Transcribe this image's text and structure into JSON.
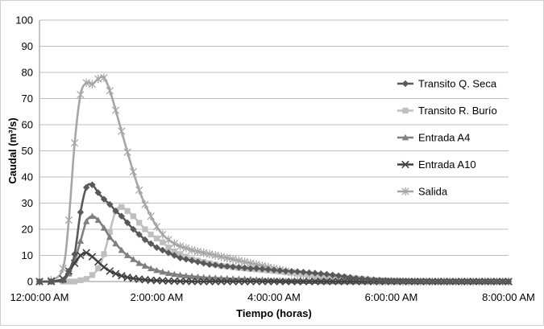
{
  "chart_data": {
    "type": "line",
    "title": "",
    "xlabel": "Tiempo (horas)",
    "ylabel": "Caudal (m³/s)",
    "ylim": [
      0,
      100
    ],
    "yticks": [
      0,
      10,
      20,
      30,
      40,
      50,
      60,
      70,
      80,
      90,
      100
    ],
    "xlim_hours": [
      0,
      8
    ],
    "xtick_hours": [
      0,
      2,
      4,
      6,
      8
    ],
    "xtick_labels": [
      "12:00:00 AM",
      "2:00:00 AM",
      "4:00:00 AM",
      "6:00:00 AM",
      "8:00:00 AM"
    ],
    "grid": "horizontal",
    "legend_position": "right",
    "series": [
      {
        "name": "Transito Q. Seca",
        "color": "#595959",
        "marker": "diamond",
        "x": [
          0.0,
          0.2,
          0.4,
          0.5,
          0.6,
          0.7,
          0.8,
          0.9,
          1.0,
          1.1,
          1.2,
          1.3,
          1.4,
          1.5,
          1.6,
          1.7,
          1.8,
          1.9,
          2.0,
          2.1,
          2.2,
          2.3,
          2.4,
          2.5,
          2.6,
          2.7,
          2.8,
          2.9,
          3.0,
          3.1,
          3.2,
          3.3,
          3.4,
          3.5,
          3.6,
          3.7,
          3.8,
          3.9,
          4.0,
          4.1,
          4.2,
          4.3,
          4.4,
          4.5,
          4.6,
          4.7,
          4.8,
          4.9,
          5.0,
          5.1,
          5.2,
          5.3,
          5.4,
          5.5,
          5.6,
          5.7,
          5.8,
          5.9,
          6.0,
          6.1,
          6.2,
          6.3,
          6.4,
          6.5,
          6.6,
          6.7,
          6.8,
          6.9,
          7.0,
          7.1,
          7.2,
          7.3,
          7.4,
          7.5,
          7.6,
          7.7,
          7.8,
          7.9,
          8.0
        ],
        "y": [
          0,
          0,
          0.5,
          4,
          10.5,
          26.5,
          36,
          37,
          34,
          31.5,
          29.5,
          27,
          25,
          22.5,
          20,
          18,
          16,
          14.5,
          13,
          12,
          11,
          10,
          9,
          8.5,
          8,
          7.5,
          7,
          6.5,
          6.3,
          6,
          5.8,
          5.6,
          5.4,
          5.2,
          5,
          5,
          4.8,
          4.6,
          4.4,
          4.2,
          4,
          3.9,
          3.8,
          3.6,
          3.4,
          3.2,
          3,
          2.8,
          2.5,
          2.2,
          1.9,
          1.6,
          1.3,
          1.1,
          0.9,
          0.7,
          0.5,
          0.4,
          0.3,
          0.25,
          0.2,
          0.15,
          0.1,
          0.1,
          0.05,
          0,
          0,
          0,
          0,
          0,
          0,
          0,
          0,
          0,
          0,
          0,
          0,
          0,
          0
        ]
      },
      {
        "name": "Transito R. Burío",
        "color": "#bfbfbf",
        "marker": "square",
        "x": [
          0.0,
          0.2,
          0.4,
          0.5,
          0.6,
          0.7,
          0.8,
          0.9,
          1.0,
          1.1,
          1.2,
          1.3,
          1.4,
          1.5,
          1.6,
          1.7,
          1.8,
          1.9,
          2.0,
          2.1,
          2.2,
          2.3,
          2.4,
          2.5,
          2.6,
          2.7,
          2.8,
          2.9,
          3.0,
          3.1,
          3.2,
          3.3,
          3.4,
          3.5,
          3.6,
          3.7,
          3.8,
          3.9,
          4.0,
          4.1,
          4.2,
          4.3,
          4.4,
          4.5,
          4.6,
          4.7,
          4.8,
          4.9,
          5.0,
          5.1,
          5.2,
          5.3,
          5.4,
          5.5,
          5.6,
          5.7,
          5.8,
          5.9,
          6.0,
          6.1,
          6.2,
          6.3,
          6.4,
          6.5,
          6.6,
          6.7,
          6.8,
          6.9,
          7.0,
          7.1,
          7.2,
          7.3,
          7.4,
          7.5,
          7.6,
          7.7,
          7.8,
          7.9,
          8.0
        ],
        "y": [
          0,
          0,
          0,
          0,
          0,
          0.5,
          1,
          2.5,
          5,
          10.5,
          19,
          27,
          28.5,
          27,
          25,
          22.5,
          20,
          18,
          16.5,
          15,
          13,
          11.5,
          10.5,
          9.5,
          8.5,
          8,
          7.5,
          7,
          6.5,
          6,
          5.8,
          5.5,
          5.2,
          5,
          4.8,
          4.6,
          4.4,
          4.2,
          4,
          3.8,
          3.6,
          3.4,
          3.2,
          3,
          2.8,
          2.6,
          2.4,
          2.2,
          2,
          1.8,
          1.6,
          1.4,
          1.2,
          1,
          0.8,
          0.6,
          0.5,
          0.4,
          0.3,
          0.25,
          0.2,
          0.15,
          0.1,
          0.1,
          0.05,
          0,
          0,
          0,
          0,
          0,
          0,
          0,
          0,
          0,
          0,
          0,
          0,
          0,
          0
        ]
      },
      {
        "name": "Entrada A4",
        "color": "#7f7f7f",
        "marker": "triangle",
        "x": [
          0.0,
          0.2,
          0.4,
          0.5,
          0.6,
          0.7,
          0.8,
          0.9,
          1.0,
          1.1,
          1.2,
          1.3,
          1.4,
          1.5,
          1.6,
          1.7,
          1.8,
          1.9,
          2.0,
          2.1,
          2.2,
          2.3,
          2.4,
          2.5,
          2.6,
          2.7,
          2.8,
          2.9,
          3.0,
          3.1,
          3.2,
          3.3,
          3.4,
          3.5,
          3.6,
          3.7,
          3.8,
          3.9,
          4.0,
          4.1,
          4.2,
          4.3,
          4.4,
          4.5,
          4.6,
          4.7,
          4.8,
          4.9,
          5.0,
          5.1,
          5.2,
          5.3,
          5.4,
          5.5,
          5.6,
          5.7,
          5.8,
          5.9,
          6.0,
          6.1,
          6.2,
          6.3,
          6.4,
          6.5,
          6.6,
          6.7,
          6.8,
          6.9,
          7.0,
          7.1,
          7.2,
          7.3,
          7.4,
          7.5,
          7.6,
          7.7,
          7.8,
          7.9,
          8.0
        ],
        "y": [
          0,
          0,
          0.5,
          3,
          8,
          15.5,
          23,
          25,
          23.5,
          20.5,
          17,
          14.5,
          12,
          10,
          8.5,
          7,
          6,
          5,
          4.3,
          3.7,
          3.2,
          2.8,
          2.5,
          2.2,
          2,
          1.8,
          1.6,
          1.5,
          1.4,
          1.3,
          1.2,
          1.1,
          1,
          1,
          0.9,
          0.8,
          0.7,
          0.6,
          0.5,
          0.4,
          0.3,
          0.25,
          0.2,
          0.15,
          0.1,
          0.1,
          0.05,
          0,
          0,
          0,
          0,
          0,
          0,
          0,
          0,
          0,
          0,
          0,
          0,
          0,
          0,
          0,
          0,
          0,
          0,
          0,
          0,
          0,
          0,
          0,
          0,
          0,
          0,
          0,
          0,
          0,
          0,
          0,
          0
        ]
      },
      {
        "name": "Entrada A10",
        "color": "#404040",
        "marker": "x",
        "x": [
          0.0,
          0.2,
          0.4,
          0.5,
          0.6,
          0.7,
          0.8,
          0.9,
          1.0,
          1.1,
          1.2,
          1.3,
          1.4,
          1.5,
          1.6,
          1.7,
          1.8,
          1.9,
          2.0,
          2.1,
          2.2,
          2.3,
          2.4,
          2.5,
          2.6,
          2.7,
          2.8,
          2.9,
          3.0,
          3.1,
          3.2,
          3.3,
          3.4,
          3.5,
          3.6,
          3.7,
          3.8,
          3.9,
          4.0,
          4.1,
          4.2,
          4.3,
          4.4,
          4.5,
          4.6,
          4.7,
          4.8,
          4.9,
          5.0,
          5.1,
          5.2,
          5.3,
          5.4,
          5.5,
          5.6,
          5.7,
          5.8,
          5.9,
          6.0,
          6.1,
          6.2,
          6.3,
          6.4,
          6.5,
          6.6,
          6.7,
          6.8,
          6.9,
          7.0,
          7.1,
          7.2,
          7.3,
          7.4,
          7.5,
          7.6,
          7.7,
          7.8,
          7.9,
          8.0
        ],
        "y": [
          0,
          0,
          1,
          4,
          7,
          10,
          11,
          9.5,
          7.5,
          5.5,
          4,
          3,
          2.2,
          1.6,
          1.2,
          0.9,
          0.7,
          0.5,
          0.4,
          0.3,
          0.2,
          0.15,
          0.1,
          0.1,
          0.05,
          0,
          0,
          0,
          0,
          0,
          0,
          0,
          0,
          0,
          0,
          0,
          0,
          0,
          0,
          0,
          0,
          0,
          0,
          0,
          0,
          0,
          0,
          0,
          0,
          0,
          0,
          0,
          0,
          0,
          0,
          0,
          0,
          0,
          0,
          0,
          0,
          0,
          0,
          0,
          0,
          0,
          0,
          0,
          0,
          0,
          0,
          0,
          0,
          0,
          0,
          0,
          0,
          0,
          0
        ]
      },
      {
        "name": "Salida",
        "color": "#a6a6a6",
        "marker": "star",
        "x": [
          0.0,
          0.2,
          0.4,
          0.5,
          0.6,
          0.7,
          0.8,
          0.9,
          1.0,
          1.1,
          1.2,
          1.3,
          1.4,
          1.5,
          1.6,
          1.7,
          1.8,
          1.9,
          2.0,
          2.1,
          2.2,
          2.3,
          2.4,
          2.5,
          2.6,
          2.7,
          2.8,
          2.9,
          3.0,
          3.1,
          3.2,
          3.3,
          3.4,
          3.5,
          3.6,
          3.7,
          3.8,
          3.9,
          4.0,
          4.1,
          4.2,
          4.3,
          4.4,
          4.5,
          4.6,
          4.7,
          4.8,
          4.9,
          5.0,
          5.1,
          5.2,
          5.3,
          5.4,
          5.5,
          5.6,
          5.7,
          5.8,
          5.9,
          6.0,
          6.1,
          6.2,
          6.3,
          6.4,
          6.5,
          6.6,
          6.7,
          6.8,
          6.9,
          7.0,
          7.1,
          7.2,
          7.3,
          7.4,
          7.5,
          7.6,
          7.7,
          7.8,
          7.9,
          8.0
        ],
        "y": [
          0,
          0.5,
          5,
          23.5,
          53,
          71.5,
          76,
          75.5,
          77.5,
          78,
          73,
          65.5,
          57.5,
          49.5,
          42,
          35,
          29.5,
          25,
          21,
          18,
          16,
          14.5,
          13.5,
          12.8,
          12,
          11.5,
          11,
          10.5,
          10,
          9.5,
          9,
          8.5,
          8,
          7.5,
          7,
          6.5,
          6,
          5.5,
          5,
          4.5,
          4,
          3.5,
          3,
          2.6,
          2.2,
          1.9,
          1.6,
          1.3,
          1.1,
          0.9,
          0.7,
          0.6,
          0.5,
          0.4,
          0.3,
          0.2,
          0.15,
          0.1,
          0.1,
          0.05,
          0,
          0,
          0,
          0,
          0,
          0,
          0,
          0,
          0,
          0,
          0,
          0,
          0,
          0,
          0,
          0,
          0,
          0,
          0
        ]
      }
    ]
  }
}
